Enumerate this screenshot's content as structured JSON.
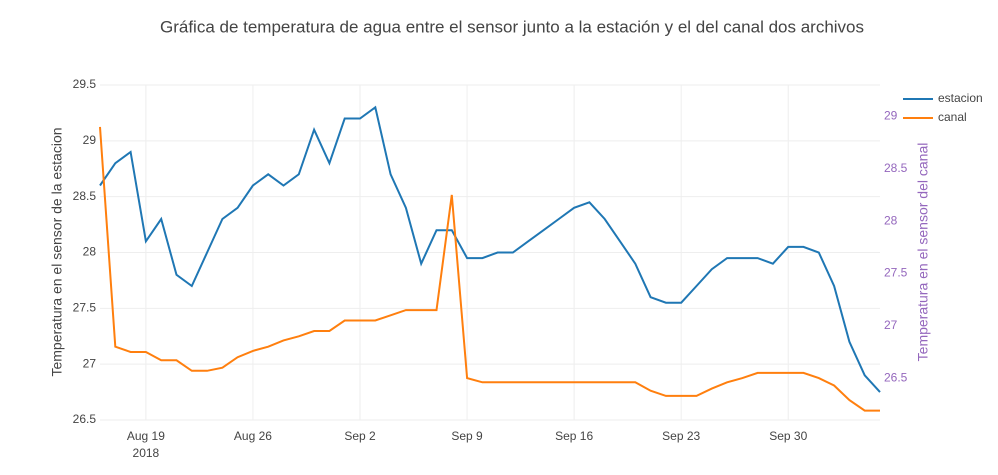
{
  "chart_data": {
    "type": "line",
    "title": "Gráfica de temperatura de agua entre el sensor junto a la estación y el del canal dos archivos",
    "y_label": "Temperatura en el sensor de la estacion",
    "y2_label": "Temperatura en el sensor del canal",
    "x_year_label": "2018",
    "x": [
      "2018-08-16",
      "2018-08-17",
      "2018-08-18",
      "2018-08-19",
      "2018-08-20",
      "2018-08-21",
      "2018-08-22",
      "2018-08-23",
      "2018-08-24",
      "2018-08-25",
      "2018-08-26",
      "2018-08-27",
      "2018-08-28",
      "2018-08-29",
      "2018-08-30",
      "2018-08-31",
      "2018-09-01",
      "2018-09-02",
      "2018-09-03",
      "2018-09-04",
      "2018-09-05",
      "2018-09-06",
      "2018-09-07",
      "2018-09-08",
      "2018-09-09",
      "2018-09-10",
      "2018-09-11",
      "2018-09-12",
      "2018-09-13",
      "2018-09-14",
      "2018-09-15",
      "2018-09-16",
      "2018-09-17",
      "2018-09-18",
      "2018-09-19",
      "2018-09-20",
      "2018-09-21",
      "2018-09-22",
      "2018-09-23",
      "2018-09-24",
      "2018-09-25",
      "2018-09-26",
      "2018-09-27",
      "2018-09-28",
      "2018-09-29",
      "2018-09-30",
      "2018-10-01",
      "2018-10-02",
      "2018-10-03",
      "2018-10-04",
      "2018-10-05",
      "2018-10-06"
    ],
    "series": [
      {
        "name": "estacion",
        "color": "#1f77b4",
        "axis": "y",
        "values": [
          28.6,
          28.8,
          28.9,
          28.1,
          28.3,
          27.8,
          27.7,
          28.0,
          28.3,
          28.4,
          28.6,
          28.7,
          28.6,
          28.7,
          29.1,
          28.8,
          29.2,
          29.2,
          29.3,
          28.7,
          28.4,
          27.9,
          28.2,
          28.2,
          27.95,
          27.95,
          28.0,
          28.0,
          28.1,
          28.2,
          28.3,
          28.4,
          28.45,
          28.3,
          28.1,
          27.9,
          27.6,
          27.55,
          27.55,
          27.7,
          27.85,
          27.95,
          27.95,
          27.95,
          27.9,
          28.05,
          28.05,
          28.0,
          27.7,
          27.2,
          26.9,
          26.75
        ]
      },
      {
        "name": "canal",
        "color": "#ff7f0e",
        "axis": "y2",
        "values": [
          28.9,
          26.8,
          26.75,
          26.75,
          26.67,
          26.67,
          26.57,
          26.57,
          26.6,
          26.7,
          26.76,
          26.8,
          26.86,
          26.9,
          26.95,
          26.95,
          27.05,
          27.05,
          27.05,
          27.1,
          27.15,
          27.15,
          27.15,
          28.25,
          26.5,
          26.46,
          26.46,
          26.46,
          26.46,
          26.46,
          26.46,
          26.46,
          26.46,
          26.46,
          26.46,
          26.46,
          26.38,
          26.33,
          26.33,
          26.33,
          26.4,
          26.46,
          26.5,
          26.55,
          26.55,
          26.55,
          26.55,
          26.5,
          26.43,
          26.29,
          26.19,
          26.19
        ]
      }
    ],
    "xlim": [
      "2018-08-16",
      "2018-10-06"
    ],
    "xticks": [
      {
        "value": "2018-08-19",
        "label": "Aug 19"
      },
      {
        "value": "2018-08-26",
        "label": "Aug 26"
      },
      {
        "value": "2018-09-02",
        "label": "Sep 2"
      },
      {
        "value": "2018-09-09",
        "label": "Sep 9"
      },
      {
        "value": "2018-09-16",
        "label": "Sep 16"
      },
      {
        "value": "2018-09-23",
        "label": "Sep 23"
      },
      {
        "value": "2018-09-30",
        "label": "Sep 30"
      }
    ],
    "ylim": [
      26.5,
      29.5
    ],
    "yticks": [
      26.5,
      27,
      27.5,
      28,
      28.5,
      29,
      29.5
    ],
    "y2lim": [
      26.1,
      29.3
    ],
    "y2ticks": [
      26.5,
      27,
      27.5,
      28,
      28.5,
      29
    ],
    "y2_color": "#9467bd",
    "grid": true,
    "legend": "top-right"
  }
}
